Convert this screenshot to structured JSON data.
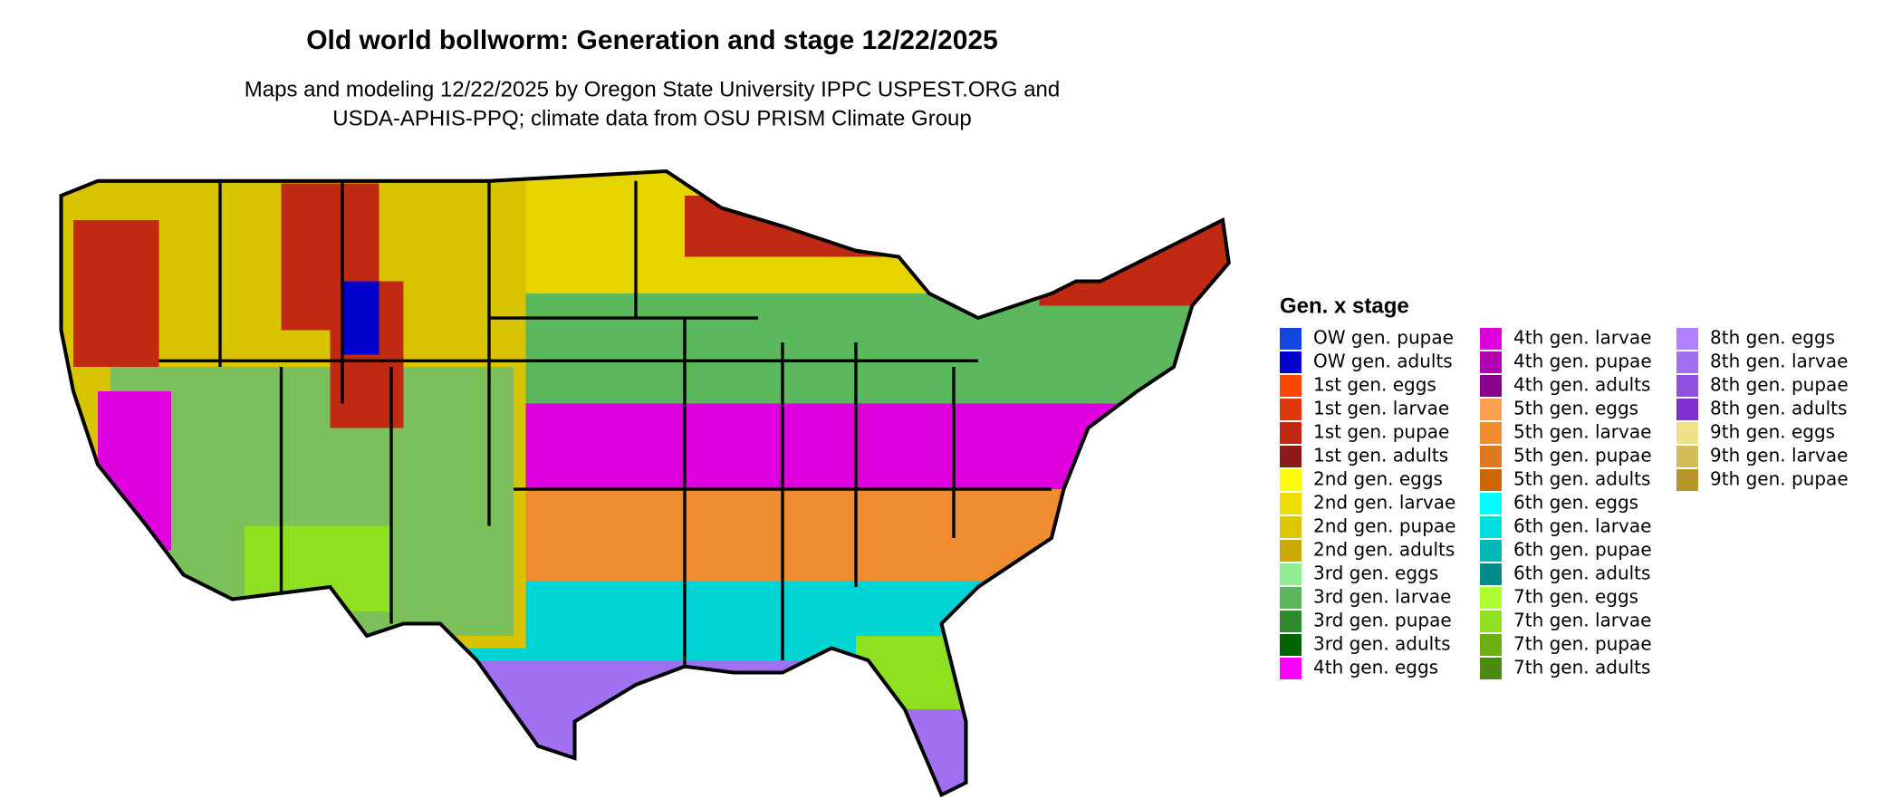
{
  "header": {
    "title": "Old world bollworm: Generation and stage 12/22/2025",
    "subtitle": [
      "Maps and modeling 12/22/2025 by Oregon State University IPPC USPEST.ORG and",
      "USDA-APHIS-PPQ; climate data from OSU PRISM Climate Group"
    ]
  },
  "legend": {
    "title": "Gen. x stage",
    "items": [
      {
        "name": "OW gen. pupae",
        "color": "#1147e0"
      },
      {
        "name": "OW gen. adults",
        "color": "#0000cd"
      },
      {
        "name": "1st gen. eggs",
        "color": "#ff4500"
      },
      {
        "name": "1st gen. larvae",
        "color": "#e0380e"
      },
      {
        "name": "1st gen. pupae",
        "color": "#c02a12"
      },
      {
        "name": "1st gen. adults",
        "color": "#8b1a1a"
      },
      {
        "name": "2nd gen. eggs",
        "color": "#ffff00"
      },
      {
        "name": "2nd gen. larvae",
        "color": "#eee000"
      },
      {
        "name": "2nd gen. pupae",
        "color": "#ddc800"
      },
      {
        "name": "2nd gen. adults",
        "color": "#cbaa00"
      },
      {
        "name": "3rd gen. eggs",
        "color": "#90ee90"
      },
      {
        "name": "3rd gen. larvae",
        "color": "#5cb85c"
      },
      {
        "name": "3rd gen. pupae",
        "color": "#2e8b2e"
      },
      {
        "name": "3rd gen. adults",
        "color": "#006400"
      },
      {
        "name": "4th gen. eggs",
        "color": "#ff00ff"
      },
      {
        "name": "4th gen. larvae",
        "color": "#dd00dd"
      },
      {
        "name": "4th gen. pupae",
        "color": "#b000b0"
      },
      {
        "name": "4th gen. adults",
        "color": "#8b008b"
      },
      {
        "name": "5th gen. eggs",
        "color": "#ffa050"
      },
      {
        "name": "5th gen. larvae",
        "color": "#f08c30"
      },
      {
        "name": "5th gen. pupae",
        "color": "#e07820"
      },
      {
        "name": "5th gen. adults",
        "color": "#cc6600"
      },
      {
        "name": "6th gen. eggs",
        "color": "#00ffff"
      },
      {
        "name": "6th gen. larvae",
        "color": "#00dddd"
      },
      {
        "name": "6th gen. pupae",
        "color": "#00b8b8"
      },
      {
        "name": "6th gen. adults",
        "color": "#008b8b"
      },
      {
        "name": "7th gen. eggs",
        "color": "#adff2f"
      },
      {
        "name": "7th gen. larvae",
        "color": "#8ee020"
      },
      {
        "name": "7th gen. pupae",
        "color": "#6cb010"
      },
      {
        "name": "7th gen. adults",
        "color": "#4a8a10"
      },
      {
        "name": "8th gen. eggs",
        "color": "#b080ff"
      },
      {
        "name": "8th gen. larvae",
        "color": "#a070f0"
      },
      {
        "name": "8th gen. pupae",
        "color": "#9050e0"
      },
      {
        "name": "8th gen. adults",
        "color": "#8030d0"
      },
      {
        "name": "9th gen. eggs",
        "color": "#f0e08c"
      },
      {
        "name": "9th gen. larvae",
        "color": "#d4bc5a"
      },
      {
        "name": "9th gen. pupae",
        "color": "#b8962e"
      }
    ]
  }
}
